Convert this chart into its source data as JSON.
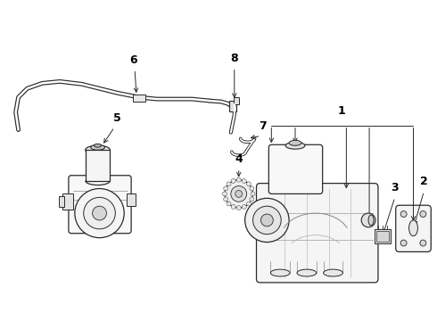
{
  "background_color": "#ffffff",
  "line_color": "#2a2a2a",
  "figsize": [
    4.9,
    3.6
  ],
  "dpi": 100,
  "label_fontsize": 9
}
